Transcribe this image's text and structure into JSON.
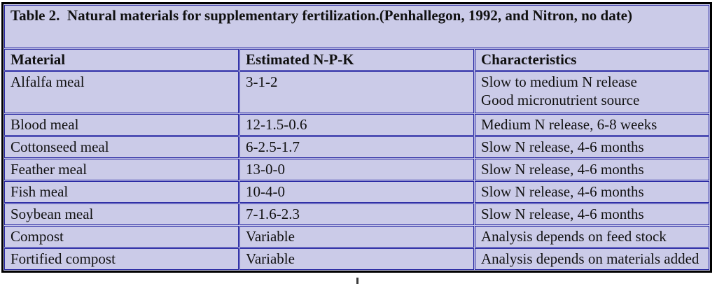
{
  "document": {
    "title": "Table 2.  Natural materials for supplementary fertilization.(Penhallegon, 1992, and Nitron, no date)"
  },
  "table": {
    "columns": [
      "Material",
      "Estimated N-P-K",
      "Characteristics"
    ],
    "rows": [
      {
        "material": "Alfalfa meal",
        "npk": "3-1-2",
        "characteristics": [
          "Slow to medium N release",
          "Good micronutrient source"
        ]
      },
      {
        "material": "Blood meal",
        "npk": "12-1.5-0.6",
        "characteristics": [
          "Medium N release, 6-8 weeks"
        ]
      },
      {
        "material": "Cottonseed meal",
        "npk": "6-2.5-1.7",
        "characteristics": [
          "Slow N release, 4-6 months"
        ]
      },
      {
        "material": "Feather meal",
        "npk": "13-0-0",
        "characteristics": [
          "Slow N release, 4-6 months"
        ]
      },
      {
        "material": "Fish meal",
        "npk": "10-4-0",
        "characteristics": [
          "Slow N release, 4-6 months"
        ]
      },
      {
        "material": "Soybean meal",
        "npk": "7-1.6-2.3",
        "characteristics": [
          "Slow N release, 4-6 months"
        ]
      },
      {
        "material": "Compost",
        "npk": "Variable",
        "characteristics": [
          "Analysis depends on feed stock"
        ]
      },
      {
        "material": "Fortified compost",
        "npk": "Variable",
        "characteristics": [
          "Analysis depends on materials added"
        ]
      }
    ]
  },
  "colors": {
    "cell_background": "#cbcbe8",
    "inner_border": "#2121a0",
    "outer_border": "#000000",
    "text": "#111111"
  }
}
